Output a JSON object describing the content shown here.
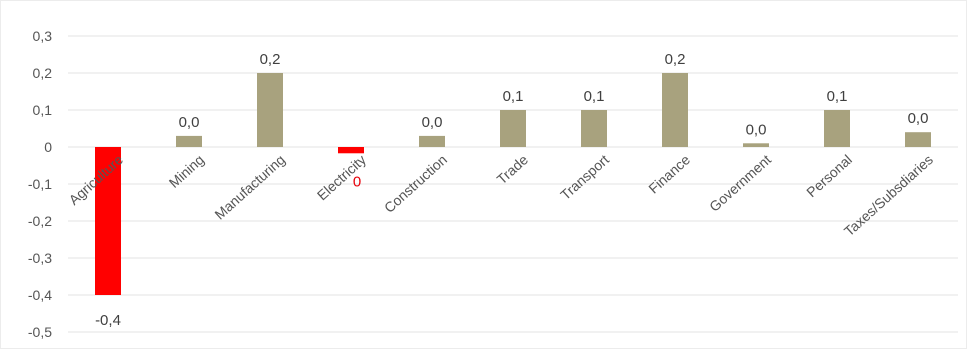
{
  "chart_data": {
    "type": "bar",
    "title": "",
    "xlabel": "",
    "ylabel": "",
    "ylim": [
      -0.5,
      0.3
    ],
    "yticks": [
      0.3,
      0.2,
      0.1,
      0,
      -0.1,
      -0.2,
      -0.3,
      -0.4,
      -0.5
    ],
    "ytick_labels": [
      "0,3",
      "0,2",
      "0,1",
      "0",
      "-0,1",
      "-0,2",
      "-0,3",
      "-0,4",
      "-0,5"
    ],
    "grid": true,
    "legend": "none",
    "categories": [
      "Agriculture",
      "Mining",
      "Manufacturing",
      "Electricity",
      "Construction",
      "Trade",
      "Transport",
      "Finance",
      "Government",
      "Personal",
      "Taxes/Subsdiaries"
    ],
    "values": [
      -0.4,
      0.03,
      0.2,
      -0.017,
      0.03,
      0.1,
      0.1,
      0.2,
      0.01,
      0.1,
      0.04
    ],
    "data_labels": [
      "-0,4",
      "0,0",
      "0,2",
      "0",
      "0,0",
      "0,1",
      "0,1",
      "0,2",
      "0,0",
      "0,1",
      "0,0"
    ],
    "colors": {
      "positive": "#a8a27e",
      "negative": "#ff0000",
      "label_red": "#e8000a",
      "grid": "#e3e3e3"
    }
  }
}
